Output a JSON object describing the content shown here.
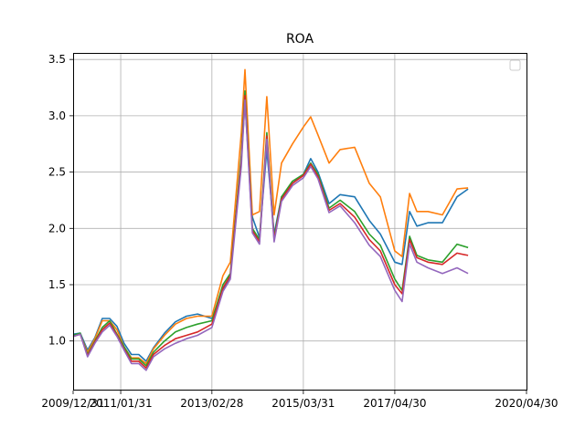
{
  "chart_data": {
    "type": "line",
    "title": "ROA",
    "xlabel": "",
    "ylabel": "",
    "grid": true,
    "legend": "top-right",
    "xlim": [
      "2009/12/31",
      "2020/04/30"
    ],
    "ylim": [
      0.56,
      3.55
    ],
    "x_ticks": [
      "2009/12/31",
      "2011/01/31",
      "2013/02/28",
      "2015/03/31",
      "2017/04/30",
      "2020/04/30"
    ],
    "y_ticks": [
      1.0,
      1.5,
      2.0,
      2.5,
      3.0,
      3.5
    ],
    "y_tick_labels": [
      "1.0",
      "1.5",
      "2.0",
      "2.5",
      "3.0",
      "3.5"
    ],
    "series": [
      {
        "color": "#1f77b4",
        "points": [
          [
            "2009/12/31",
            1.06
          ],
          [
            "2010/02/28",
            1.07
          ],
          [
            "2010/04/30",
            0.92
          ],
          [
            "2010/06/30",
            1.03
          ],
          [
            "2010/08/31",
            1.2
          ],
          [
            "2010/10/31",
            1.2
          ],
          [
            "2010/12/31",
            1.13
          ],
          [
            "2011/02/28",
            0.98
          ],
          [
            "2011/04/30",
            0.88
          ],
          [
            "2011/06/30",
            0.88
          ],
          [
            "2011/08/31",
            0.82
          ],
          [
            "2011/10/31",
            0.94
          ],
          [
            "2012/01/31",
            1.07
          ],
          [
            "2012/04/30",
            1.17
          ],
          [
            "2012/07/31",
            1.22
          ],
          [
            "2012/10/31",
            1.24
          ],
          [
            "2013/02/28",
            1.2
          ],
          [
            "2013/05/31",
            1.45
          ],
          [
            "2013/07/31",
            1.58
          ],
          [
            "2013/10/31",
            2.62
          ],
          [
            "2013/11/30",
            3.12
          ],
          [
            "2014/01/31",
            2.1
          ],
          [
            "2014/03/31",
            1.92
          ],
          [
            "2014/05/31",
            2.7
          ],
          [
            "2014/07/31",
            1.95
          ],
          [
            "2014/09/30",
            2.28
          ],
          [
            "2014/12/31",
            2.4
          ],
          [
            "2015/03/31",
            2.48
          ],
          [
            "2015/05/31",
            2.62
          ],
          [
            "2015/07/31",
            2.5
          ],
          [
            "2015/10/31",
            2.22
          ],
          [
            "2016/01/31",
            2.3
          ],
          [
            "2016/05/31",
            2.28
          ],
          [
            "2016/09/30",
            2.07
          ],
          [
            "2016/12/31",
            1.95
          ],
          [
            "2017/04/30",
            1.7
          ],
          [
            "2017/06/30",
            1.68
          ],
          [
            "2017/08/31",
            2.15
          ],
          [
            "2017/10/31",
            2.02
          ],
          [
            "2018/01/31",
            2.05
          ],
          [
            "2018/05/31",
            2.05
          ],
          [
            "2018/09/30",
            2.28
          ],
          [
            "2018/12/31",
            2.35
          ]
        ]
      },
      {
        "color": "#ff7f0e",
        "points": [
          [
            "2009/12/31",
            1.05
          ],
          [
            "2010/02/28",
            1.06
          ],
          [
            "2010/04/30",
            0.9
          ],
          [
            "2010/06/30",
            1.02
          ],
          [
            "2010/08/31",
            1.18
          ],
          [
            "2010/10/31",
            1.18
          ],
          [
            "2010/12/31",
            1.1
          ],
          [
            "2011/02/28",
            0.95
          ],
          [
            "2011/04/30",
            0.85
          ],
          [
            "2011/06/30",
            0.85
          ],
          [
            "2011/08/31",
            0.8
          ],
          [
            "2011/10/31",
            0.93
          ],
          [
            "2012/01/31",
            1.05
          ],
          [
            "2012/04/30",
            1.15
          ],
          [
            "2012/07/31",
            1.2
          ],
          [
            "2012/10/31",
            1.22
          ],
          [
            "2013/02/28",
            1.22
          ],
          [
            "2013/05/31",
            1.58
          ],
          [
            "2013/07/31",
            1.7
          ],
          [
            "2013/10/31",
            2.85
          ],
          [
            "2013/11/30",
            3.41
          ],
          [
            "2014/01/31",
            2.12
          ],
          [
            "2014/03/31",
            2.15
          ],
          [
            "2014/05/31",
            3.17
          ],
          [
            "2014/07/31",
            2.12
          ],
          [
            "2014/09/30",
            2.58
          ],
          [
            "2014/12/31",
            2.75
          ],
          [
            "2015/03/31",
            2.9
          ],
          [
            "2015/05/31",
            2.99
          ],
          [
            "2015/07/31",
            2.83
          ],
          [
            "2015/10/31",
            2.58
          ],
          [
            "2016/01/31",
            2.7
          ],
          [
            "2016/05/31",
            2.72
          ],
          [
            "2016/09/30",
            2.4
          ],
          [
            "2016/12/31",
            2.28
          ],
          [
            "2017/04/30",
            1.8
          ],
          [
            "2017/06/30",
            1.75
          ],
          [
            "2017/08/31",
            2.31
          ],
          [
            "2017/10/31",
            2.15
          ],
          [
            "2018/01/31",
            2.15
          ],
          [
            "2018/05/31",
            2.12
          ],
          [
            "2018/09/30",
            2.35
          ],
          [
            "2018/12/31",
            2.36
          ]
        ]
      },
      {
        "color": "#2ca02c",
        "points": [
          [
            "2009/12/31",
            1.05
          ],
          [
            "2010/02/28",
            1.07
          ],
          [
            "2010/04/30",
            0.88
          ],
          [
            "2010/06/30",
            1.0
          ],
          [
            "2010/08/31",
            1.12
          ],
          [
            "2010/10/31",
            1.18
          ],
          [
            "2010/12/31",
            1.06
          ],
          [
            "2011/02/28",
            0.95
          ],
          [
            "2011/04/30",
            0.84
          ],
          [
            "2011/06/30",
            0.84
          ],
          [
            "2011/08/31",
            0.78
          ],
          [
            "2011/10/31",
            0.9
          ],
          [
            "2012/01/31",
            1.0
          ],
          [
            "2012/04/30",
            1.08
          ],
          [
            "2012/07/31",
            1.12
          ],
          [
            "2012/10/31",
            1.15
          ],
          [
            "2013/02/28",
            1.18
          ],
          [
            "2013/05/31",
            1.5
          ],
          [
            "2013/07/31",
            1.6
          ],
          [
            "2013/10/31",
            2.65
          ],
          [
            "2013/11/30",
            3.22
          ],
          [
            "2014/01/31",
            2.0
          ],
          [
            "2014/03/31",
            1.9
          ],
          [
            "2014/05/31",
            2.85
          ],
          [
            "2014/07/31",
            1.92
          ],
          [
            "2014/09/30",
            2.28
          ],
          [
            "2014/12/31",
            2.42
          ],
          [
            "2015/03/31",
            2.48
          ],
          [
            "2015/05/31",
            2.58
          ],
          [
            "2015/07/31",
            2.48
          ],
          [
            "2015/10/31",
            2.18
          ],
          [
            "2016/01/31",
            2.25
          ],
          [
            "2016/05/31",
            2.15
          ],
          [
            "2016/09/30",
            1.95
          ],
          [
            "2016/12/31",
            1.85
          ],
          [
            "2017/04/30",
            1.55
          ],
          [
            "2017/06/30",
            1.45
          ],
          [
            "2017/08/31",
            1.93
          ],
          [
            "2017/10/31",
            1.76
          ],
          [
            "2018/01/31",
            1.72
          ],
          [
            "2018/05/31",
            1.7
          ],
          [
            "2018/09/30",
            1.86
          ],
          [
            "2018/12/31",
            1.83
          ]
        ]
      },
      {
        "color": "#d62728",
        "points": [
          [
            "2009/12/31",
            1.04
          ],
          [
            "2010/02/28",
            1.06
          ],
          [
            "2010/04/30",
            0.87
          ],
          [
            "2010/06/30",
            0.99
          ],
          [
            "2010/08/31",
            1.1
          ],
          [
            "2010/10/31",
            1.16
          ],
          [
            "2010/12/31",
            1.05
          ],
          [
            "2011/02/28",
            0.93
          ],
          [
            "2011/04/30",
            0.82
          ],
          [
            "2011/06/30",
            0.82
          ],
          [
            "2011/08/31",
            0.76
          ],
          [
            "2011/10/31",
            0.88
          ],
          [
            "2012/01/31",
            0.96
          ],
          [
            "2012/04/30",
            1.02
          ],
          [
            "2012/07/31",
            1.05
          ],
          [
            "2012/10/31",
            1.08
          ],
          [
            "2013/02/28",
            1.15
          ],
          [
            "2013/05/31",
            1.47
          ],
          [
            "2013/07/31",
            1.58
          ],
          [
            "2013/10/31",
            2.6
          ],
          [
            "2013/11/30",
            3.18
          ],
          [
            "2014/01/31",
            1.98
          ],
          [
            "2014/03/31",
            1.88
          ],
          [
            "2014/05/31",
            2.82
          ],
          [
            "2014/07/31",
            1.9
          ],
          [
            "2014/09/30",
            2.26
          ],
          [
            "2014/12/31",
            2.4
          ],
          [
            "2015/03/31",
            2.47
          ],
          [
            "2015/05/31",
            2.57
          ],
          [
            "2015/07/31",
            2.46
          ],
          [
            "2015/10/31",
            2.16
          ],
          [
            "2016/01/31",
            2.22
          ],
          [
            "2016/05/31",
            2.1
          ],
          [
            "2016/09/30",
            1.9
          ],
          [
            "2016/12/31",
            1.8
          ],
          [
            "2017/04/30",
            1.5
          ],
          [
            "2017/06/30",
            1.42
          ],
          [
            "2017/08/31",
            1.9
          ],
          [
            "2017/10/31",
            1.74
          ],
          [
            "2018/01/31",
            1.7
          ],
          [
            "2018/05/31",
            1.68
          ],
          [
            "2018/09/30",
            1.78
          ],
          [
            "2018/12/31",
            1.76
          ]
        ]
      },
      {
        "color": "#9467bd",
        "points": [
          [
            "2009/12/31",
            1.04
          ],
          [
            "2010/02/28",
            1.06
          ],
          [
            "2010/04/30",
            0.86
          ],
          [
            "2010/06/30",
            0.98
          ],
          [
            "2010/08/31",
            1.08
          ],
          [
            "2010/10/31",
            1.14
          ],
          [
            "2010/12/31",
            1.04
          ],
          [
            "2011/02/28",
            0.92
          ],
          [
            "2011/04/30",
            0.8
          ],
          [
            "2011/06/30",
            0.8
          ],
          [
            "2011/08/31",
            0.74
          ],
          [
            "2011/10/31",
            0.86
          ],
          [
            "2012/01/31",
            0.93
          ],
          [
            "2012/04/30",
            0.98
          ],
          [
            "2012/07/31",
            1.02
          ],
          [
            "2012/10/31",
            1.05
          ],
          [
            "2013/02/28",
            1.12
          ],
          [
            "2013/05/31",
            1.44
          ],
          [
            "2013/07/31",
            1.55
          ],
          [
            "2013/10/31",
            2.55
          ],
          [
            "2013/11/30",
            3.14
          ],
          [
            "2014/01/31",
            1.96
          ],
          [
            "2014/03/31",
            1.86
          ],
          [
            "2014/05/31",
            2.79
          ],
          [
            "2014/07/31",
            1.88
          ],
          [
            "2014/09/30",
            2.24
          ],
          [
            "2014/12/31",
            2.38
          ],
          [
            "2015/03/31",
            2.45
          ],
          [
            "2015/05/31",
            2.55
          ],
          [
            "2015/07/31",
            2.44
          ],
          [
            "2015/10/31",
            2.14
          ],
          [
            "2016/01/31",
            2.2
          ],
          [
            "2016/05/31",
            2.05
          ],
          [
            "2016/09/30",
            1.85
          ],
          [
            "2016/12/31",
            1.75
          ],
          [
            "2017/04/30",
            1.45
          ],
          [
            "2017/06/30",
            1.35
          ],
          [
            "2017/08/31",
            1.86
          ],
          [
            "2017/10/31",
            1.7
          ],
          [
            "2018/01/31",
            1.65
          ],
          [
            "2018/05/31",
            1.6
          ],
          [
            "2018/09/30",
            1.65
          ],
          [
            "2018/12/31",
            1.6
          ]
        ]
      }
    ]
  }
}
